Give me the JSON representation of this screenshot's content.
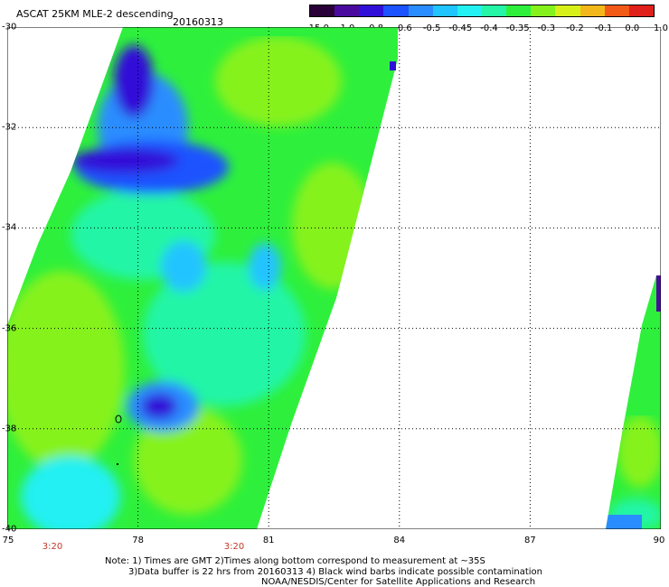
{
  "header": {
    "title": "ASCAT 25KM MLE-2 descending",
    "date": "20160313"
  },
  "colorbar": {
    "labels": [
      "-15.0",
      "-1.0",
      "-0.8",
      "-0.6",
      "-0.5",
      "-0.45",
      "-0.4",
      "-0.35",
      "-0.3",
      "-0.2",
      "-0.1",
      "0.0",
      "1.0"
    ],
    "colors": [
      "#2a0038",
      "#4b0a9e",
      "#3010d8",
      "#1d52ff",
      "#2a8dff",
      "#20c4ff",
      "#23f0f2",
      "#24f5a6",
      "#2ef03c",
      "#86f21d",
      "#d8f01a",
      "#f2b81a",
      "#f25a18",
      "#e0201a"
    ]
  },
  "axes": {
    "y_labels": [
      "-30",
      "-32",
      "-34",
      "-36",
      "-38",
      "-40"
    ],
    "x_labels": [
      "75",
      "78",
      "81",
      "84",
      "87",
      "90"
    ],
    "times": [
      "3:20",
      "3:20"
    ]
  },
  "notes": {
    "line1": "Note: 1) Times are GMT 2)Times along bottom correspond to measurement at ~35S",
    "line2": "3)Data buffer is 22 hrs from 20160313 4) Black wind barbs indicate possible contamination",
    "line3": "NOAA/NESDIS/Center for Satellite Applications and Research"
  },
  "map_data": {
    "lon_range": [
      75,
      90
    ],
    "lat_range": [
      -30,
      -40
    ],
    "swaths": [
      {
        "name": "left-swath",
        "dominant": "green-cyan",
        "features": [
          "blue low at lat -33 lon 76.5",
          "blue low at lat -38 lon 78.5"
        ]
      },
      {
        "name": "right-swath",
        "dominant": "green",
        "features": [
          "purple cells at lat -35.5 lon 90"
        ]
      }
    ]
  }
}
